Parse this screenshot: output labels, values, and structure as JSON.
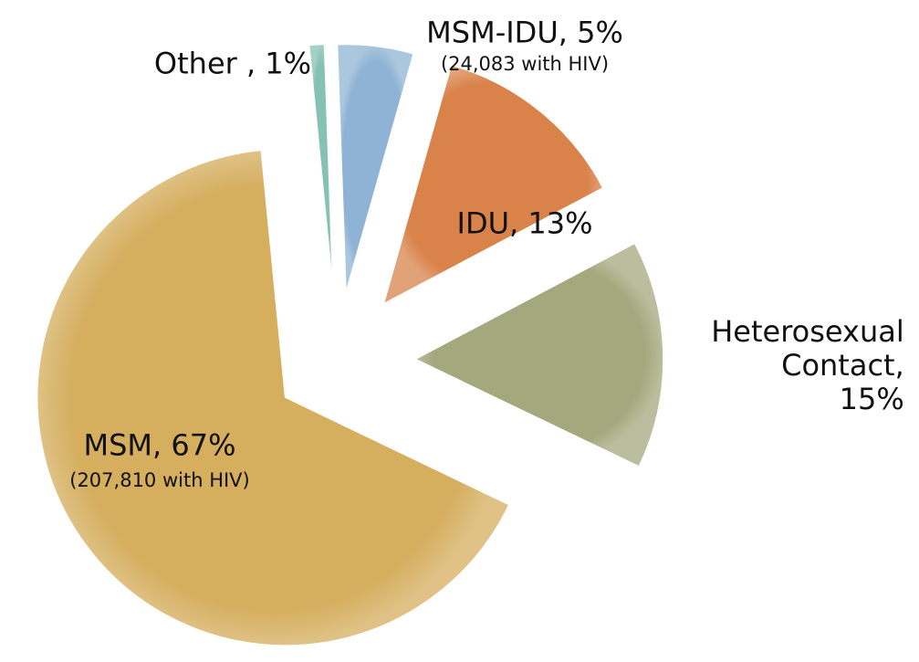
{
  "chart_data": {
    "type": "pie",
    "values": [
      5,
      13,
      15,
      67,
      1
    ],
    "value_labels": [
      "MSM-IDU, 5%",
      "IDU, 13%",
      "Heterosexual\nContact, 15%",
      "MSM, 67%",
      "Other , 1%"
    ],
    "sublabels": [
      "(24,083 with HIV)",
      null,
      null,
      "(207,810 with HIV)",
      null
    ],
    "colors": [
      "#8fb3d4",
      "#d9834a",
      "#a4a87d",
      "#d5ae5e",
      "#86c2b3"
    ]
  }
}
